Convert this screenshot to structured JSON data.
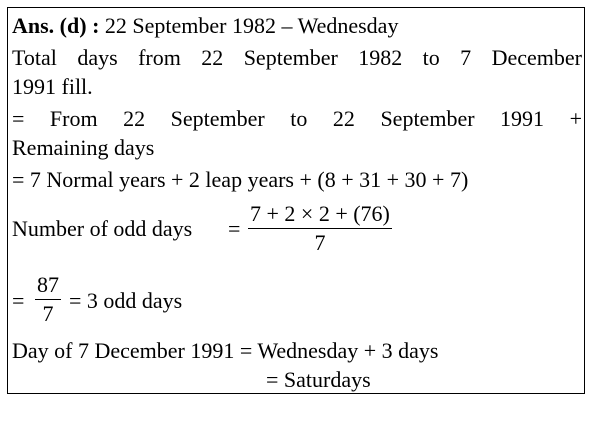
{
  "answer_label": "Ans. (d) :",
  "answer_text": "22 September 1982 – Wednesday",
  "lines": [
    "Total days from 22 September 1982 to 7 December",
    "1991 fill.",
    "= From 22 September to 22 September 1991 +",
    "Remaining days",
    "= 7 Normal years + 2 leap years + (8 + 31 + 30 + 7)"
  ],
  "odd_days": {
    "label": "Number of odd days",
    "equals": "=",
    "numerator": "7 + 2 × 2 + (76)",
    "denominator": "7"
  },
  "result": {
    "equals": "=",
    "numerator": "87",
    "denominator": "7",
    "text": "= 3 odd days"
  },
  "conclusion": [
    "Day of 7 December 1991 = Wednesday + 3 days",
    "= Saturdays"
  ]
}
